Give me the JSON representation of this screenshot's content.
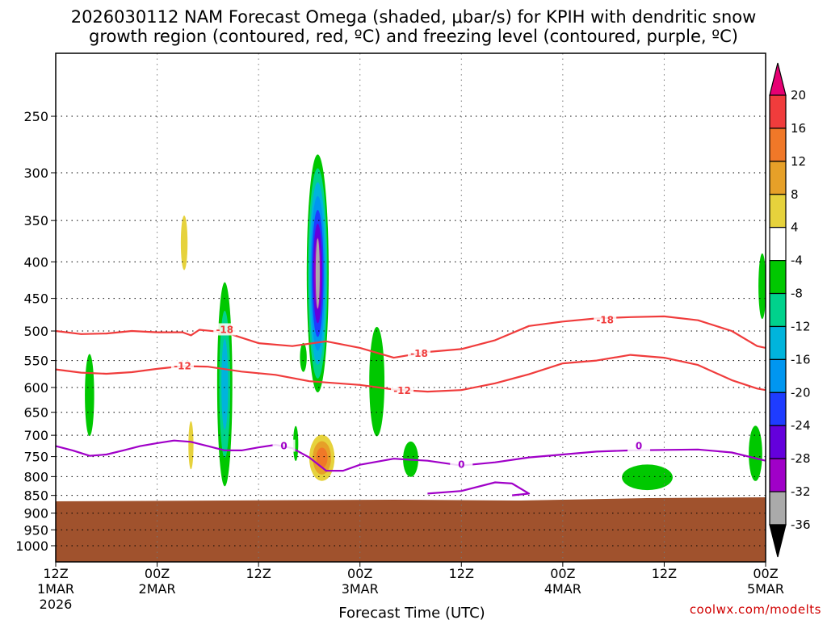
{
  "chart_data": {
    "type": "time-height cross-section",
    "title_line1": "2026030112 NAM Forecast Omega (shaded, μbar/s) for KPIH with dendritic snow",
    "title_line2": "growth region (contoured, red, ºC) and freezing level (contoured, purple, ºC)",
    "xlabel": "Forecast Time (UTC)",
    "ylabel": "",
    "credit": "coolwx.com/modelts",
    "x_ticks": [
      {
        "hour": 0,
        "top": "12Z",
        "mid": "1MAR",
        "bot": "2026"
      },
      {
        "hour": 12,
        "top": "00Z",
        "mid": "2MAR",
        "bot": ""
      },
      {
        "hour": 24,
        "top": "12Z",
        "mid": "",
        "bot": ""
      },
      {
        "hour": 36,
        "top": "00Z",
        "mid": "3MAR",
        "bot": ""
      },
      {
        "hour": 48,
        "top": "12Z",
        "mid": "",
        "bot": ""
      },
      {
        "hour": 60,
        "top": "00Z",
        "mid": "4MAR",
        "bot": ""
      },
      {
        "hour": 72,
        "top": "12Z",
        "mid": "",
        "bot": ""
      },
      {
        "hour": 84,
        "top": "00Z",
        "mid": "5MAR",
        "bot": ""
      }
    ],
    "y_ticks": [
      "250",
      "300",
      "350",
      "400",
      "450",
      "500",
      "550",
      "600",
      "650",
      "700",
      "750",
      "800",
      "850",
      "900",
      "950",
      "1000"
    ],
    "y_pressure_values": [
      250,
      300,
      350,
      400,
      450,
      500,
      550,
      600,
      650,
      700,
      750,
      800,
      850,
      900,
      950,
      1000
    ],
    "ylim_hpa": [
      1050,
      200
    ],
    "xlim_hours": [
      0,
      84
    ],
    "colorbar": {
      "levels": [
        "20",
        "16",
        "12",
        "8",
        "4",
        "-4",
        "-8",
        "-12",
        "-16",
        "-20",
        "-24",
        "-28",
        "-32",
        "-36"
      ],
      "colors": [
        "#e60073",
        "#f03c3c",
        "#f07828",
        "#e6a028",
        "#e6d23c",
        "#ffffff",
        "#00c800",
        "#00d28c",
        "#00b4dc",
        "#0096f0",
        "#1e3cff",
        "#6400dc",
        "#a000c8",
        "#aaaaaa",
        "#000000"
      ]
    },
    "series": [
      {
        "name": "dendritic -18C",
        "color": "#f03c3c",
        "label": "-18",
        "points": [
          [
            0,
            500
          ],
          [
            3,
            505
          ],
          [
            6,
            504
          ],
          [
            9,
            500
          ],
          [
            12,
            502
          ],
          [
            15,
            502
          ],
          [
            16,
            507
          ],
          [
            17,
            498
          ],
          [
            20,
            502
          ],
          [
            24,
            520
          ],
          [
            28,
            525
          ],
          [
            32,
            517
          ],
          [
            36,
            528
          ],
          [
            40,
            545
          ],
          [
            44,
            535
          ],
          [
            48,
            530
          ],
          [
            52,
            515
          ],
          [
            56,
            492
          ],
          [
            60,
            485
          ],
          [
            64,
            480
          ],
          [
            68,
            478
          ],
          [
            72,
            477
          ],
          [
            76,
            483
          ],
          [
            80,
            500
          ],
          [
            83,
            525
          ],
          [
            84,
            528
          ]
        ],
        "label_at": [
          [
            20,
            498
          ],
          [
            43,
            538
          ],
          [
            65,
            483
          ]
        ]
      },
      {
        "name": "dendritic -12C",
        "color": "#f03c3c",
        "label": "-12",
        "points": [
          [
            0,
            566
          ],
          [
            3,
            572
          ],
          [
            6,
            574
          ],
          [
            9,
            571
          ],
          [
            12,
            565
          ],
          [
            15,
            560
          ],
          [
            18,
            561
          ],
          [
            22,
            570
          ],
          [
            26,
            576
          ],
          [
            30,
            588
          ],
          [
            36,
            595
          ],
          [
            40,
            604
          ],
          [
            44,
            608
          ],
          [
            48,
            605
          ],
          [
            52,
            592
          ],
          [
            56,
            575
          ],
          [
            60,
            555
          ],
          [
            64,
            550
          ],
          [
            68,
            540
          ],
          [
            72,
            545
          ],
          [
            76,
            558
          ],
          [
            80,
            586
          ],
          [
            83,
            602
          ],
          [
            84,
            605
          ]
        ],
        "label_at": [
          [
            15,
            560
          ],
          [
            41,
            606
          ]
        ]
      },
      {
        "name": "freezing level 0C",
        "color": "#a000c8",
        "label": "0",
        "points": [
          [
            0,
            725
          ],
          [
            2,
            735
          ],
          [
            4,
            748
          ],
          [
            6,
            745
          ],
          [
            8,
            735
          ],
          [
            10,
            725
          ],
          [
            12,
            718
          ],
          [
            14,
            712
          ],
          [
            16,
            715
          ],
          [
            18,
            725
          ],
          [
            20,
            735
          ],
          [
            22,
            735
          ],
          [
            24,
            728
          ],
          [
            26,
            722
          ],
          [
            28,
            730
          ],
          [
            30,
            752
          ],
          [
            32,
            785
          ],
          [
            34,
            785
          ],
          [
            36,
            770
          ],
          [
            40,
            755
          ],
          [
            44,
            760
          ],
          [
            48,
            772
          ],
          [
            52,
            764
          ],
          [
            56,
            752
          ],
          [
            60,
            745
          ],
          [
            64,
            738
          ],
          [
            68,
            735
          ],
          [
            72,
            734
          ],
          [
            76,
            733
          ],
          [
            80,
            740
          ],
          [
            84,
            760
          ]
        ],
        "label_at": [
          [
            27,
            725
          ],
          [
            48,
            770
          ],
          [
            69,
            725
          ]
        ]
      },
      {
        "name": "freezing level 0C (low loops)",
        "color": "#a000c8",
        "label": "",
        "points": [
          [
            44,
            845
          ],
          [
            48,
            838
          ],
          [
            52,
            815
          ],
          [
            54,
            818
          ],
          [
            56,
            845
          ],
          [
            54,
            850
          ]
        ],
        "label_at": []
      }
    ],
    "omega_features": [
      {
        "name": "strong ascent column",
        "hour_center": 31,
        "hpa_top": 285,
        "hpa_bottom": 605,
        "min_value": -32
      },
      {
        "name": "weak descent",
        "hour_center": 31.5,
        "hpa_top": 700,
        "hpa_bottom": 810,
        "max_value": 8
      },
      {
        "name": "ascent band day2",
        "hour_center": 20,
        "hpa_top": 430,
        "hpa_bottom": 820,
        "min_value": -12
      },
      {
        "name": "ascent band day3",
        "hour_center": 38,
        "hpa_top": 495,
        "hpa_bottom": 700,
        "min_value": -8
      }
    ]
  }
}
